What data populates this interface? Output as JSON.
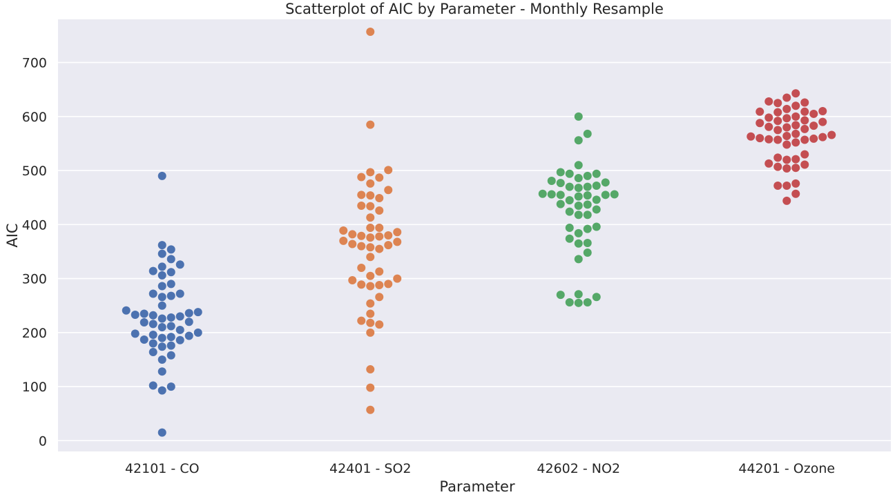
{
  "chart_data": {
    "type": "scatter",
    "subtype": "swarm",
    "title": "Scatterplot of AIC by Parameter - Monthly Resample",
    "xlabel": "Parameter",
    "ylabel": "AIC",
    "ylim": [
      -20,
      780
    ],
    "yticks": [
      0,
      100,
      200,
      300,
      400,
      500,
      600,
      700
    ],
    "grid": true,
    "background": "#eaeaf2",
    "grid_color": "#ffffff",
    "categories": [
      "42101 - CO",
      "42401 - SO2",
      "42602 - NO2",
      "44201 - Ozone"
    ],
    "series": [
      {
        "category": "42101 - CO",
        "color": "#4c72b0",
        "values": [
          490,
          362,
          354,
          346,
          336,
          326,
          322,
          314,
          312,
          306,
          290,
          286,
          272,
          272,
          268,
          266,
          250,
          241,
          238,
          236,
          235,
          233,
          232,
          230,
          228,
          226,
          220,
          219,
          216,
          212,
          210,
          205,
          200,
          198,
          196,
          194,
          192,
          190,
          187,
          186,
          180,
          176,
          174,
          164,
          158,
          150,
          128,
          102,
          100,
          93,
          15
        ]
      },
      {
        "category": "42401 - SO2",
        "color": "#dd8452",
        "values": [
          757,
          585,
          501,
          497,
          488,
          487,
          476,
          464,
          455,
          454,
          449,
          435,
          434,
          426,
          413,
          394,
          394,
          389,
          386,
          382,
          380,
          379,
          378,
          376,
          370,
          368,
          364,
          362,
          360,
          358,
          355,
          340,
          320,
          313,
          305,
          300,
          297,
          290,
          289,
          288,
          286,
          266,
          254,
          235,
          222,
          218,
          215,
          200,
          132,
          98,
          57
        ]
      },
      {
        "category": "42602 - NO2",
        "color": "#55a868",
        "values": [
          600,
          568,
          556,
          510,
          497,
          494,
          494,
          490,
          486,
          481,
          478,
          477,
          472,
          470,
          470,
          468,
          457,
          456,
          456,
          455,
          455,
          454,
          452,
          446,
          445,
          438,
          437,
          435,
          428,
          424,
          418,
          418,
          396,
          394,
          392,
          384,
          374,
          366,
          365,
          348,
          336,
          271,
          270,
          266,
          256,
          256,
          255
        ]
      },
      {
        "category": "44201 - Ozone",
        "color": "#c44e52",
        "values": [
          643,
          635,
          628,
          626,
          625,
          620,
          614,
          610,
          609,
          609,
          608,
          605,
          600,
          598,
          597,
          593,
          592,
          590,
          588,
          584,
          583,
          581,
          580,
          577,
          575,
          568,
          566,
          564,
          563,
          562,
          560,
          559,
          558,
          557,
          557,
          552,
          548,
          530,
          524,
          521,
          520,
          513,
          511,
          507,
          505,
          504,
          476,
          472,
          472,
          457,
          444
        ]
      }
    ]
  }
}
